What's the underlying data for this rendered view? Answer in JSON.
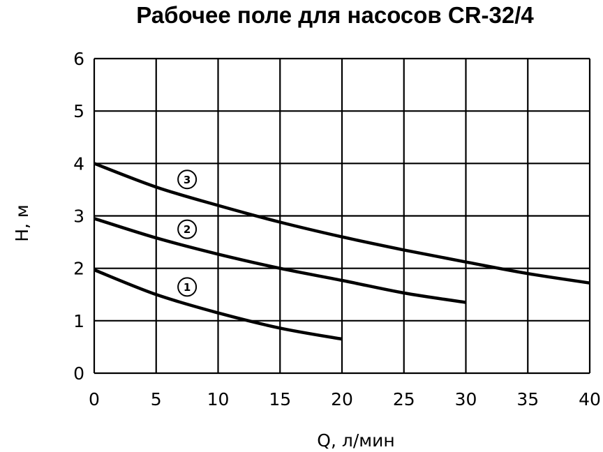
{
  "chart_data": {
    "type": "line",
    "title": "Рабочее поле для насосов CR-32/4",
    "xlabel": "Q, л/мин",
    "ylabel": "H, м",
    "xlim": [
      0,
      40
    ],
    "ylim": [
      0,
      6
    ],
    "grid": true,
    "x_ticks": [
      "0",
      "5",
      "10",
      "15",
      "20",
      "25",
      "30",
      "35",
      "40"
    ],
    "y_ticks": [
      "0",
      "1",
      "2",
      "3",
      "4",
      "5",
      "6"
    ],
    "series": [
      {
        "name": "1",
        "x": [
          0,
          5,
          10,
          15,
          20
        ],
        "y": [
          1.97,
          1.5,
          1.15,
          0.86,
          0.65
        ]
      },
      {
        "name": "2",
        "x": [
          0,
          5,
          10,
          15,
          20,
          25,
          30
        ],
        "y": [
          2.95,
          2.58,
          2.27,
          2.0,
          1.77,
          1.53,
          1.35
        ]
      },
      {
        "name": "3",
        "x": [
          0,
          5,
          10,
          15,
          20,
          25,
          30,
          35,
          40
        ],
        "y": [
          4.0,
          3.55,
          3.2,
          2.88,
          2.6,
          2.35,
          2.12,
          1.9,
          1.72
        ]
      }
    ]
  }
}
